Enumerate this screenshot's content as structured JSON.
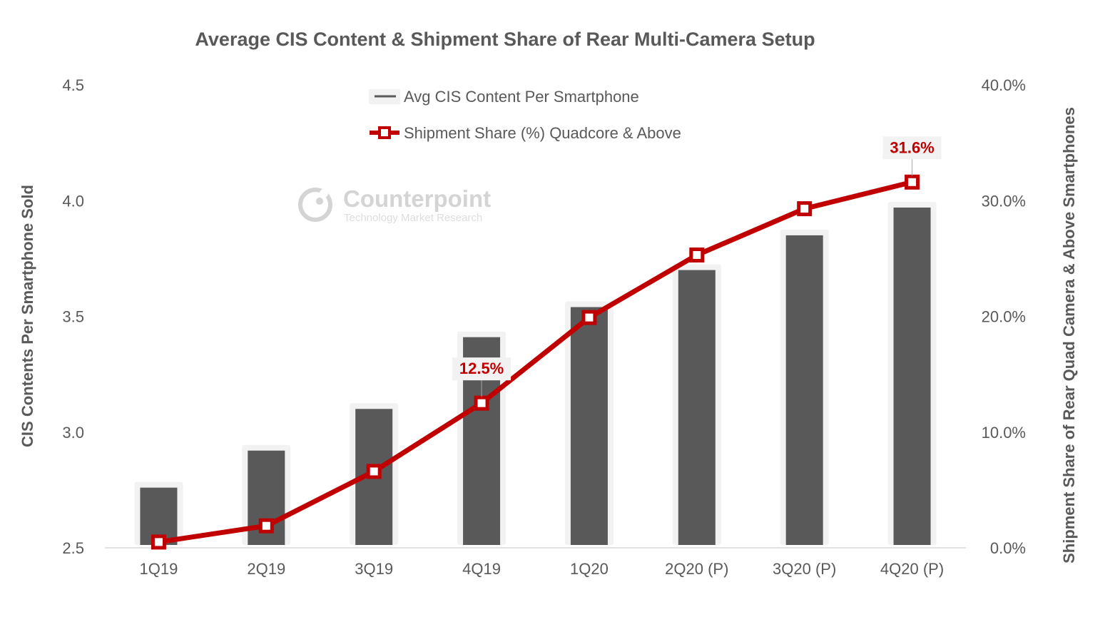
{
  "colors": {
    "bar": "#595959",
    "bar_halo": "#f2f2f2",
    "line": "#c00000",
    "text": "#595959",
    "axis": "#d9d9d9",
    "label_bg": "#f2f2f2",
    "watermark": "#d4d4d4"
  },
  "watermark": {
    "brand": "Counterpoint",
    "tagline": "Technology Market Research",
    "icon": "counterpoint-logo-icon"
  },
  "chart_data": {
    "type": "bar",
    "title": "Average CIS Content & Shipment Share of Rear Multi-Camera Setup",
    "categories": [
      "1Q19",
      "2Q19",
      "3Q19",
      "4Q19",
      "1Q20",
      "2Q20 (P)",
      "3Q20 (P)",
      "4Q20 (P)"
    ],
    "ylabel": "CIS Contents Per Smartphone Sold",
    "ylabel_right": "Shipment Share of Rear Quad Camera  & Above Smartphones",
    "ylim": [
      2.5,
      4.5
    ],
    "ylim_right": [
      0,
      40
    ],
    "yticks": [
      "2.5",
      "3.0",
      "3.5",
      "4.0",
      "4.5"
    ],
    "yticks_right": [
      "0.0%",
      "10.0%",
      "20.0%",
      "30.0%",
      "40.0%"
    ],
    "legend": {
      "position": "top-center",
      "entries": [
        "Avg CIS Content Per Smartphone",
        "Shipment Share (%) Quadcore & Above"
      ]
    },
    "series": [
      {
        "name": "Avg CIS Content Per Smartphone",
        "type": "bar",
        "axis": "left",
        "values": [
          2.76,
          2.92,
          3.1,
          3.41,
          3.54,
          3.7,
          3.85,
          3.97
        ]
      },
      {
        "name": "Shipment Share (%) Quadcore & Above",
        "type": "line",
        "axis": "right",
        "values": [
          0.5,
          1.9,
          6.6,
          12.5,
          19.9,
          25.3,
          29.3,
          31.6
        ]
      }
    ],
    "data_labels": [
      {
        "series": 1,
        "index": 3,
        "text": "12.5%"
      },
      {
        "series": 1,
        "index": 7,
        "text": "31.6%"
      }
    ],
    "grid": false
  }
}
